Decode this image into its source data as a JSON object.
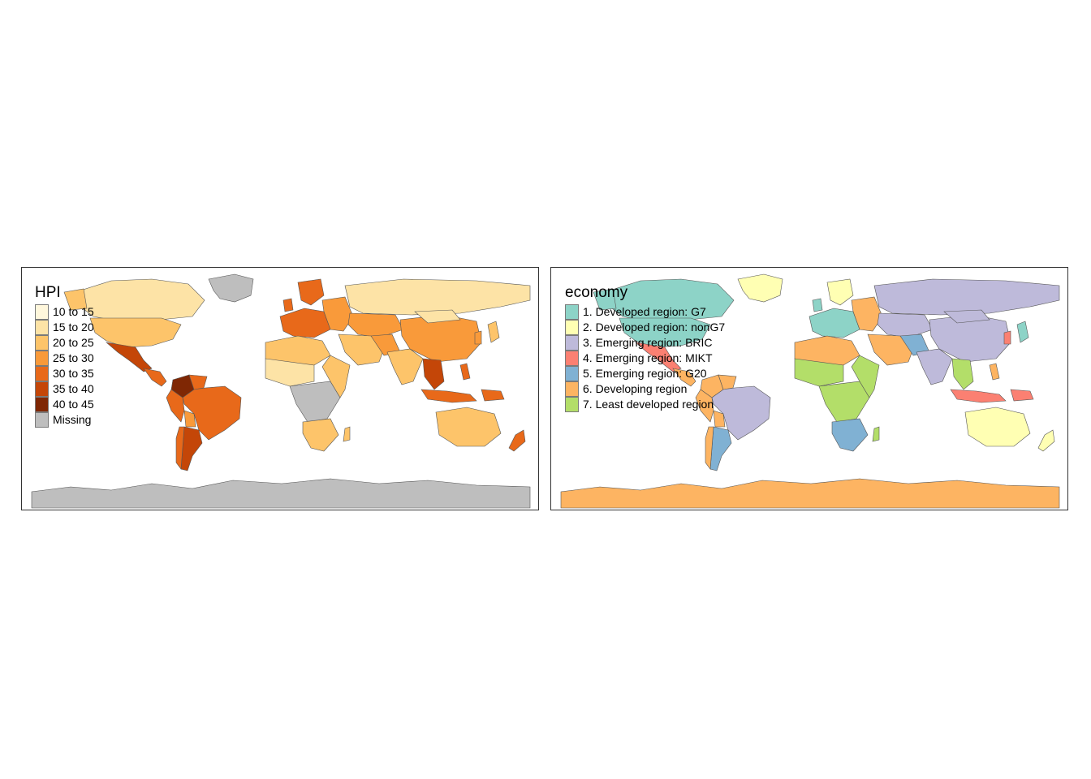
{
  "panels": {
    "hpi": {
      "legend_title": "HPI",
      "legend": [
        {
          "label": "10 to 15",
          "color": "#FFF7DC"
        },
        {
          "label": "15 to 20",
          "color": "#FDE3A6"
        },
        {
          "label": "20 to 25",
          "color": "#FDC46A"
        },
        {
          "label": "25 to 30",
          "color": "#F99A3A"
        },
        {
          "label": "30 to 35",
          "color": "#E8691A"
        },
        {
          "label": "35 to 40",
          "color": "#C44608"
        },
        {
          "label": "40 to 45",
          "color": "#7F2704"
        },
        {
          "label": "Missing",
          "color": "#BEBEBE"
        }
      ]
    },
    "economy": {
      "legend_title": "economy",
      "legend": [
        {
          "label": "1. Developed region: G7",
          "color": "#8DD3C7"
        },
        {
          "label": "2. Developed region: nonG7",
          "color": "#FFFFB3"
        },
        {
          "label": "3. Emerging region: BRIC",
          "color": "#BEBADA"
        },
        {
          "label": "4. Emerging region: MIKT",
          "color": "#FB8072"
        },
        {
          "label": "5. Emerging region: G20",
          "color": "#80B1D3"
        },
        {
          "label": "6. Developing region",
          "color": "#FDB462"
        },
        {
          "label": "7. Least developed region",
          "color": "#B3DE69"
        }
      ]
    }
  }
}
